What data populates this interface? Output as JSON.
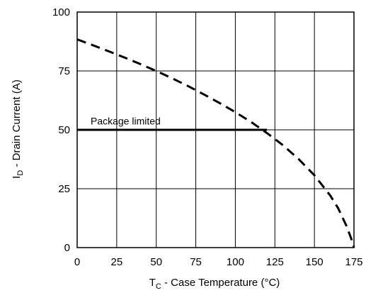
{
  "chart_data": {
    "type": "line",
    "xlabel": {
      "main": "T",
      "sub": "C",
      "rest": " - Case Temperature (°C)"
    },
    "ylabel": {
      "main": "I",
      "sub": "D",
      "rest": " - Drain Current (A)"
    },
    "xlim": [
      0,
      175
    ],
    "ylim": [
      0,
      100
    ],
    "x_ticks": [
      "0",
      "25",
      "50",
      "75",
      "100",
      "125",
      "150",
      "175"
    ],
    "y_ticks": [
      "0",
      "25",
      "50",
      "75",
      "100"
    ],
    "grid": true,
    "series": [
      {
        "style": "dashed",
        "x": [
          0,
          10,
          20,
          30,
          40,
          50,
          60,
          70,
          80,
          90,
          100,
          110,
          120,
          125,
          130,
          140,
          150,
          160,
          165,
          170,
          172,
          174,
          175
        ],
        "y": [
          88.4,
          85.9,
          83.3,
          80.7,
          77.9,
          75.0,
          71.9,
          68.6,
          65.1,
          61.4,
          57.5,
          53.3,
          48.6,
          46.1,
          43.5,
          37.6,
          30.7,
          22.1,
          16.7,
          9.6,
          6.1,
          2.4,
          0
        ]
      },
      {
        "style": "solid",
        "x": [
          0,
          120
        ],
        "y": [
          50,
          50
        ]
      }
    ],
    "annotations": [
      {
        "text": "Package limited",
        "x": 8.5,
        "y": 52.3
      }
    ],
    "colors": {
      "line": "#000000",
      "grid": "#000000",
      "background": "#ffffff"
    }
  }
}
